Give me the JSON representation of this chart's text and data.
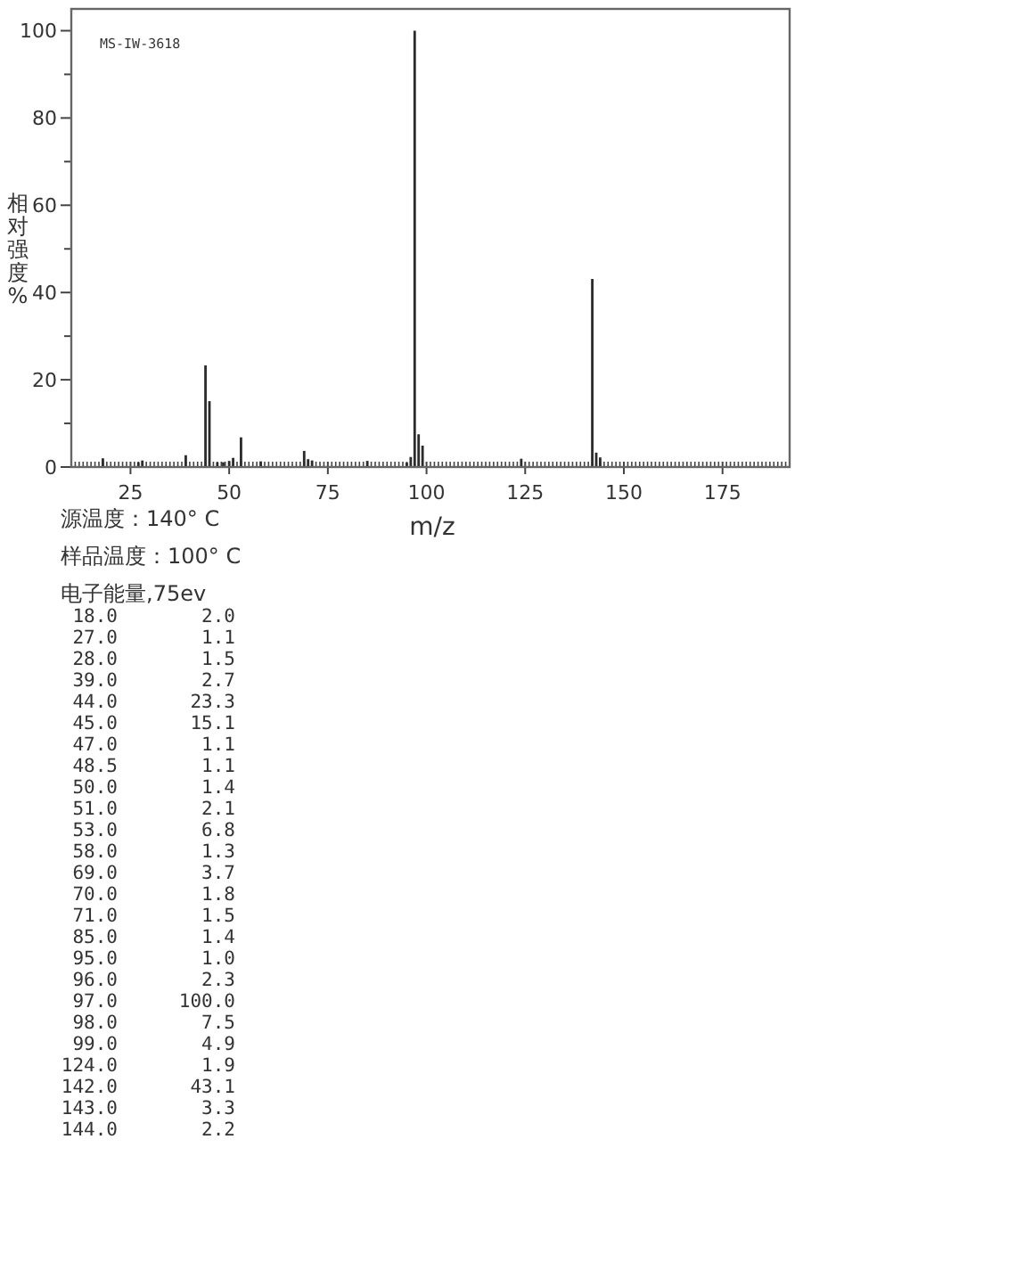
{
  "chart_data": {
    "type": "bar",
    "title": "MS-IW-3618",
    "xlabel": "m/z",
    "ylabel": "相对强度%",
    "annotations": [
      "源温度：140° C",
      "样品温度：100° C",
      "电子能量,75ev",
      "18.0",
      "2.0",
      "27.0",
      "1.1",
      "28.0",
      "1.5",
      "39.0",
      "2.7",
      "44.0",
      "23.3",
      "45.0",
      "15.1",
      "47.0",
      "1.1",
      "48.5",
      "1.1",
      "50.0",
      "1.4",
      "51.0",
      "2.1",
      "53.0",
      "6.8",
      "58.0",
      "1.3",
      "69.0",
      "3.7",
      "70.0",
      "1.8",
      "71.0",
      "1.5",
      "85.0",
      "1.4",
      "95.0",
      "1.0",
      "96.0",
      "2.3",
      "97.0",
      "100.0",
      "98.0",
      "7.5",
      "99.0",
      "4.9",
      "124.0",
      "1.9",
      "142.0",
      "43.1",
      "143.0",
      "3.3",
      "144.0",
      "2.2"
    ],
    "color": "#2b2b2b",
    "x": [
      18,
      27,
      28,
      39,
      44,
      45,
      47,
      48.5,
      50,
      51,
      53,
      58,
      69,
      70,
      71,
      85,
      95,
      96,
      97,
      98,
      99,
      124,
      142,
      143,
      144
    ],
    "values": [
      2.0,
      1.1,
      1.5,
      2.7,
      23.3,
      15.1,
      1.1,
      1.1,
      1.4,
      2.1,
      6.8,
      1.3,
      3.7,
      1.8,
      1.5,
      1.4,
      1.0,
      2.3,
      100.0,
      7.5,
      4.9,
      1.9,
      43.1,
      3.3,
      2.2
    ],
    "xlim": [
      10,
      192
    ],
    "xticks": [
      {
        "value": 11,
        "label": null
      },
      {
        "value": 12,
        "label": null
      },
      {
        "value": 13,
        "label": null
      },
      {
        "value": 14,
        "label": null
      },
      {
        "value": 15,
        "label": null
      },
      {
        "value": 16,
        "label": null
      },
      {
        "value": 17,
        "label": null
      },
      {
        "value": 18,
        "label": null
      },
      {
        "value": 19,
        "label": null
      },
      {
        "value": 20,
        "label": null
      },
      {
        "value": 21,
        "label": null
      },
      {
        "value": 22,
        "label": null
      },
      {
        "value": 23,
        "label": null
      },
      {
        "value": 24,
        "label": null
      },
      25,
      {
        "value": 26,
        "label": null
      },
      {
        "value": 27,
        "label": null
      },
      {
        "value": 28,
        "label": null
      },
      {
        "value": 29,
        "label": null
      },
      {
        "value": 30,
        "label": null
      },
      {
        "value": 31,
        "label": null
      },
      {
        "value": 32,
        "label": null
      },
      {
        "value": 33,
        "label": null
      },
      {
        "value": 34,
        "label": null
      },
      {
        "value": 35,
        "label": null
      },
      {
        "value": 36,
        "label": null
      },
      {
        "value": 37,
        "label": null
      },
      {
        "value": 38,
        "label": null
      },
      {
        "value": 39,
        "label": null
      },
      {
        "value": 40,
        "label": null
      },
      {
        "value": 41,
        "label": null
      },
      {
        "value": 42,
        "label": null
      },
      {
        "value": 43,
        "label": null
      },
      {
        "value": 44,
        "label": null
      },
      {
        "value": 45,
        "label": null
      },
      {
        "value": 46,
        "label": null
      },
      {
        "value": 47,
        "label": null
      },
      {
        "value": 48,
        "label": null
      },
      {
        "value": 49,
        "label": null
      },
      50,
      {
        "value": 51,
        "label": null
      },
      {
        "value": 52,
        "label": null
      },
      {
        "value": 53,
        "label": null
      },
      {
        "value": 54,
        "label": null
      },
      {
        "value": 55,
        "label": null
      },
      {
        "value": 56,
        "label": null
      },
      {
        "value": 57,
        "label": null
      },
      {
        "value": 58,
        "label": null
      },
      {
        "value": 59,
        "label": null
      },
      {
        "value": 60,
        "label": null
      },
      {
        "value": 61,
        "label": null
      },
      {
        "value": 62,
        "label": null
      },
      {
        "value": 63,
        "label": null
      },
      {
        "value": 64,
        "label": null
      },
      {
        "value": 65,
        "label": null
      },
      {
        "value": 66,
        "label": null
      },
      {
        "value": 67,
        "label": null
      },
      {
        "value": 68,
        "label": null
      },
      {
        "value": 69,
        "label": null
      },
      {
        "value": 70,
        "label": null
      },
      {
        "value": 71,
        "label": null
      },
      {
        "value": 72,
        "label": null
      },
      {
        "value": 73,
        "label": null
      },
      {
        "value": 74,
        "label": null
      },
      75,
      {
        "value": 76,
        "label": null
      },
      {
        "value": 77,
        "label": null
      },
      {
        "value": 78,
        "label": null
      },
      {
        "value": 79,
        "label": null
      },
      {
        "value": 80,
        "label": null
      },
      {
        "value": 81,
        "label": null
      },
      {
        "value": 82,
        "label": null
      },
      {
        "value": 83,
        "label": null
      },
      {
        "value": 84,
        "label": null
      },
      {
        "value": 85,
        "label": null
      },
      {
        "value": 86,
        "label": null
      },
      {
        "value": 87,
        "label": null
      },
      {
        "value": 88,
        "label": null
      },
      {
        "value": 89,
        "label": null
      },
      {
        "value": 90,
        "label": null
      },
      {
        "value": 91,
        "label": null
      },
      {
        "value": 92,
        "label": null
      },
      {
        "value": 93,
        "label": null
      },
      {
        "value": 94,
        "label": null
      },
      {
        "value": 95,
        "label": null
      },
      {
        "value": 96,
        "label": null
      },
      {
        "value": 97,
        "label": null
      },
      {
        "value": 98,
        "label": null
      },
      {
        "value": 99,
        "label": null
      },
      100,
      {
        "value": 101,
        "label": null
      },
      {
        "value": 102,
        "label": null
      },
      {
        "value": 103,
        "label": null
      },
      {
        "value": 104,
        "label": null
      },
      {
        "value": 105,
        "label": null
      },
      {
        "value": 106,
        "label": null
      },
      {
        "value": 107,
        "label": null
      },
      {
        "value": 108,
        "label": null
      },
      {
        "value": 109,
        "label": null
      },
      {
        "value": 110,
        "label": null
      },
      {
        "value": 111,
        "label": null
      },
      {
        "value": 112,
        "label": null
      },
      {
        "value": 113,
        "label": null
      },
      {
        "value": 114,
        "label": null
      },
      {
        "value": 115,
        "label": null
      },
      {
        "value": 116,
        "label": null
      },
      {
        "value": 117,
        "label": null
      },
      {
        "value": 118,
        "label": null
      },
      {
        "value": 119,
        "label": null
      },
      {
        "value": 120,
        "label": null
      },
      {
        "value": 121,
        "label": null
      },
      {
        "value": 122,
        "label": null
      },
      {
        "value": 123,
        "label": null
      },
      {
        "value": 124,
        "label": null
      },
      125,
      {
        "value": 126,
        "label": null
      },
      {
        "value": 127,
        "label": null
      },
      {
        "value": 128,
        "label": null
      },
      {
        "value": 129,
        "label": null
      },
      {
        "value": 130,
        "label": null
      },
      {
        "value": 131,
        "label": null
      },
      {
        "value": 132,
        "label": null
      },
      {
        "value": 133,
        "label": null
      },
      {
        "value": 134,
        "label": null
      },
      {
        "value": 135,
        "label": null
      },
      {
        "value": 136,
        "label": null
      },
      {
        "value": 137,
        "label": null
      },
      {
        "value": 138,
        "label": null
      },
      {
        "value": 139,
        "label": null
      },
      {
        "value": 140,
        "label": null
      },
      {
        "value": 141,
        "label": null
      },
      {
        "value": 142,
        "label": null
      },
      {
        "value": 143,
        "label": null
      },
      {
        "value": 144,
        "label": null
      },
      {
        "value": 145,
        "label": null
      },
      {
        "value": 146,
        "label": null
      },
      {
        "value": 147,
        "label": null
      },
      {
        "value": 148,
        "label": null
      },
      {
        "value": 149,
        "label": null
      },
      150,
      {
        "value": 151,
        "label": null
      },
      {
        "value": 152,
        "label": null
      },
      {
        "value": 153,
        "label": null
      },
      {
        "value": 154,
        "label": null
      },
      {
        "value": 155,
        "label": null
      },
      {
        "value": 156,
        "label": null
      },
      {
        "value": 157,
        "label": null
      },
      {
        "value": 158,
        "label": null
      },
      {
        "value": 159,
        "label": null
      },
      {
        "value": 160,
        "label": null
      },
      {
        "value": 161,
        "label": null
      },
      {
        "value": 162,
        "label": null
      },
      {
        "value": 163,
        "label": null
      },
      {
        "value": 164,
        "label": null
      },
      {
        "value": 165,
        "label": null
      },
      {
        "value": 166,
        "label": null
      },
      {
        "value": 167,
        "label": null
      },
      {
        "value": 168,
        "label": null
      },
      {
        "value": 169,
        "label": null
      },
      {
        "value": 170,
        "label": null
      },
      {
        "value": 171,
        "label": null
      },
      {
        "value": 172,
        "label": null
      },
      {
        "value": 173,
        "label": null
      },
      {
        "value": 174,
        "label": null
      },
      175,
      {
        "value": 176,
        "label": null
      },
      {
        "value": 177,
        "label": null
      },
      {
        "value": 178,
        "label": null
      },
      {
        "value": 179,
        "label": null
      },
      {
        "value": 180,
        "label": null
      },
      {
        "value": 181,
        "label": null
      },
      {
        "value": 182,
        "label": null
      },
      {
        "value": 183,
        "label": null
      },
      {
        "value": 184,
        "label": null
      },
      {
        "value": 185,
        "label": null
      },
      {
        "value": 186,
        "label": null
      },
      {
        "value": 187,
        "label": null
      },
      {
        "value": 188,
        "label": null
      },
      {
        "value": 189,
        "label": null
      },
      {
        "value": 190,
        "label": null
      },
      {
        "value": 191,
        "label": null
      }
    ],
    "ylim": [
      0,
      105
    ],
    "yticks": [
      0,
      {
        "value": 10,
        "label": null
      },
      20,
      {
        "value": 30,
        "label": null
      },
      40,
      {
        "value": 50,
        "label": null
      },
      60,
      {
        "value": 70,
        "label": null
      },
      80,
      {
        "value": 90,
        "label": null
      },
      100
    ]
  }
}
